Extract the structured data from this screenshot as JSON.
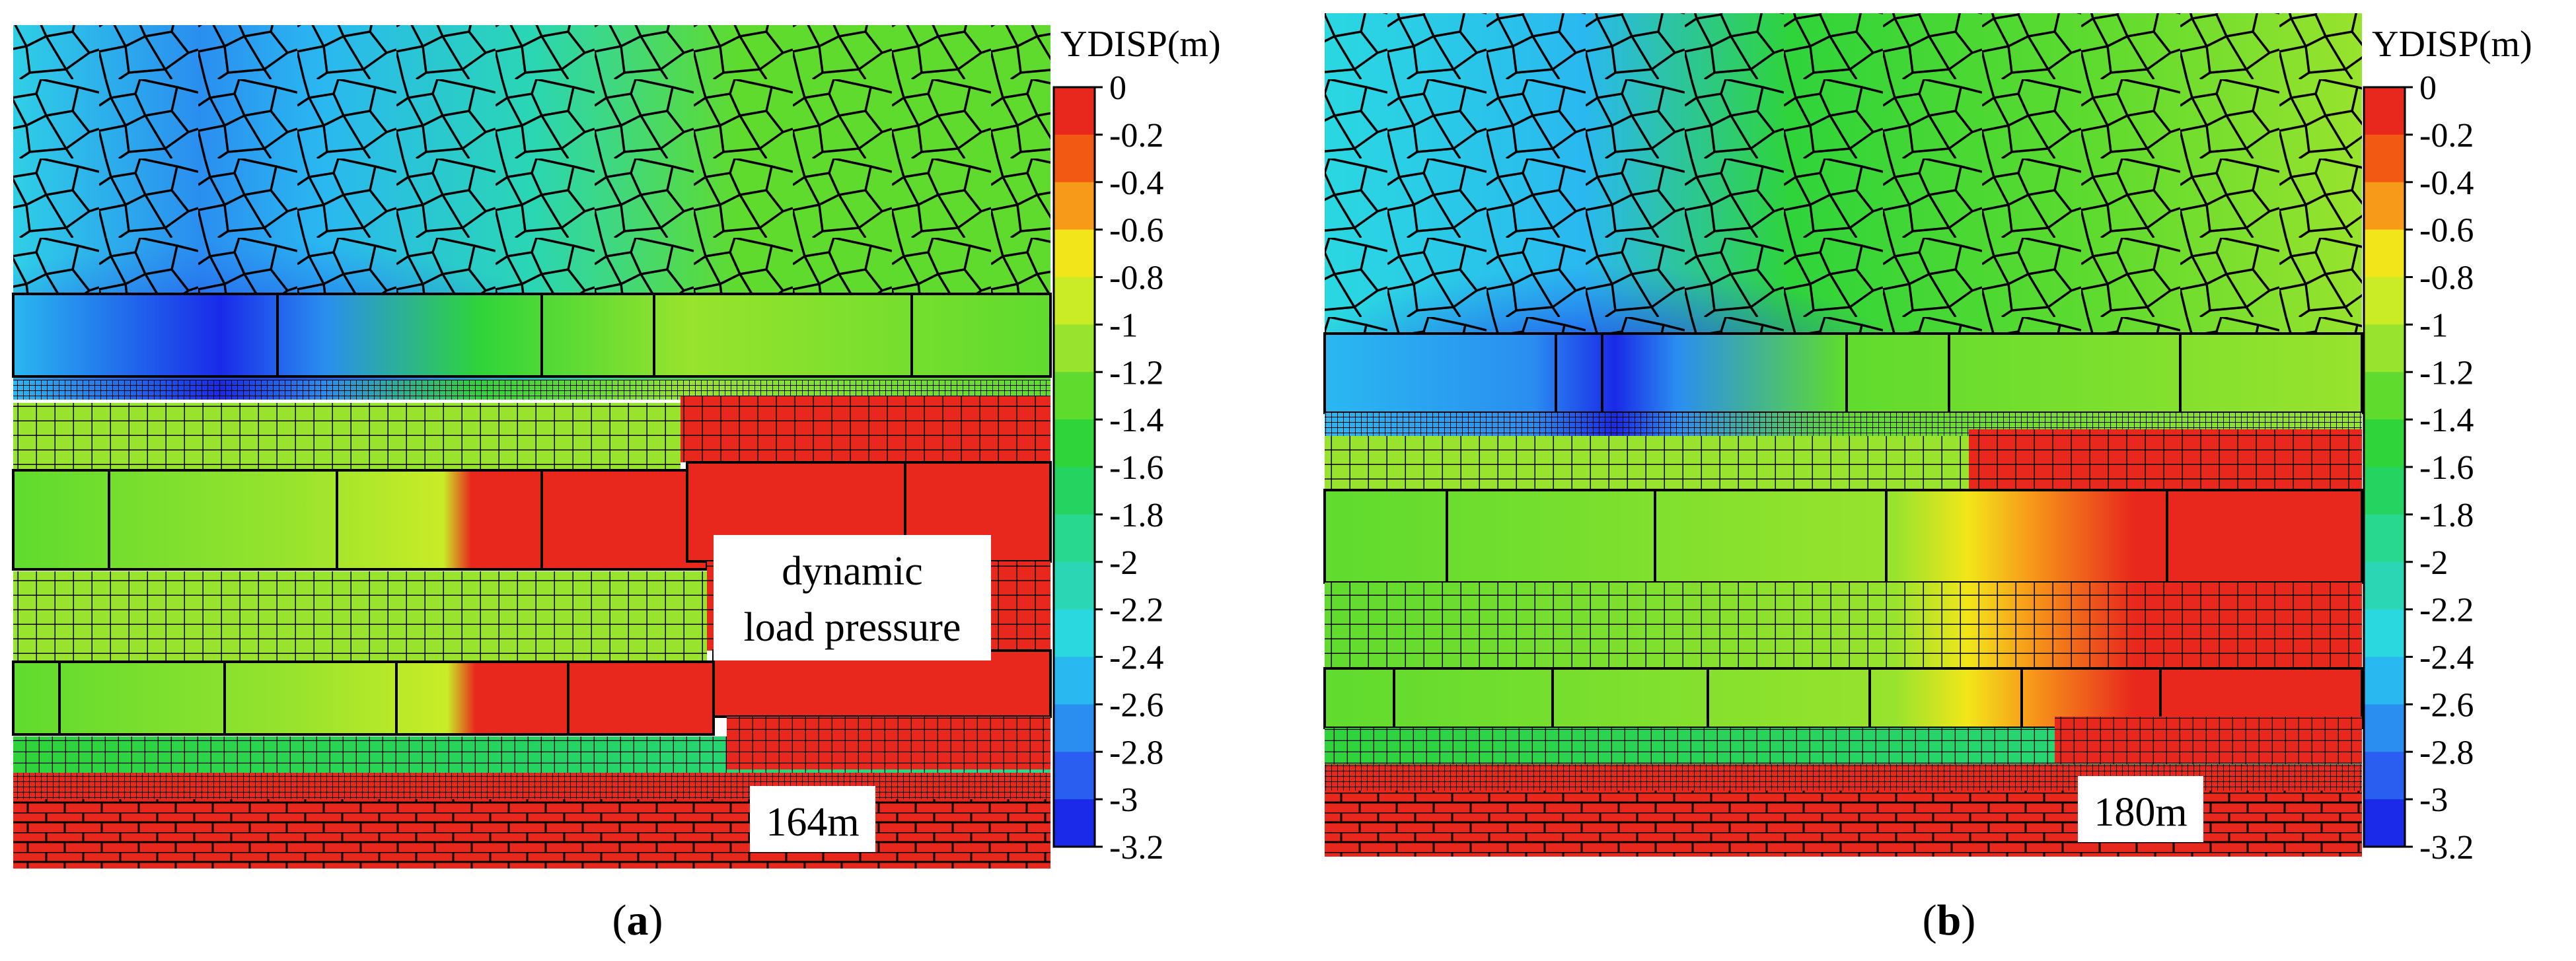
{
  "panels": [
    {
      "id": "a",
      "caption_letter": "a",
      "distance_label": "164m",
      "annotation": [
        "dynamic",
        "load pressure"
      ]
    },
    {
      "id": "b",
      "caption_letter": "b",
      "distance_label": "180m"
    }
  ],
  "colorbar": {
    "title": "YDISP(m)",
    "ticks": [
      "0",
      "-0.2",
      "-0.4",
      "-0.6",
      "-0.8",
      "-1",
      "-1.2",
      "-1.4",
      "-1.6",
      "-1.8",
      "-2",
      "-2.2",
      "-2.4",
      "-2.6",
      "-2.8",
      "-3",
      "-3.2"
    ],
    "colors": [
      "#e8281c",
      "#f25a14",
      "#f79a1a",
      "#f2e61a",
      "#c9ec27",
      "#98e32d",
      "#5fdb2e",
      "#2fd43a",
      "#25d460",
      "#27d88e",
      "#2ad6b4",
      "#2ad8e0",
      "#2ab8f0",
      "#2a8ef0",
      "#2a5ef0",
      "#1a2ae8"
    ]
  },
  "icons": [
    "color-scale"
  ]
}
